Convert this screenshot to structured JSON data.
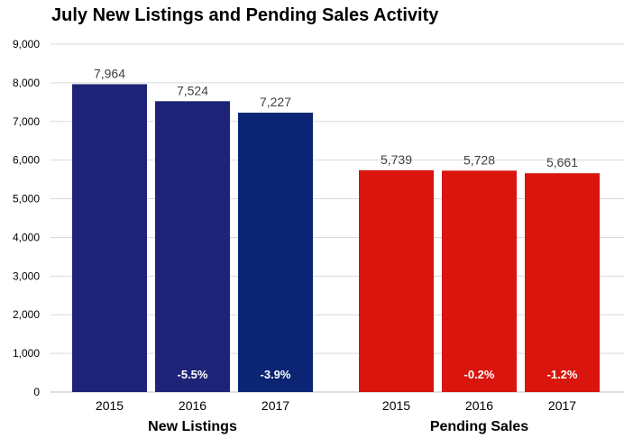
{
  "title": "July New Listings and Pending Sales Activity",
  "chart_data": {
    "type": "bar",
    "title": "July New Listings and Pending Sales Activity",
    "ylim": [
      0,
      9000
    ],
    "yticks": [
      "0",
      "1,000",
      "2,000",
      "3,000",
      "4,000",
      "5,000",
      "6,000",
      "7,000",
      "8,000",
      "9,000"
    ],
    "grid": true,
    "groups": [
      {
        "name": "New Listings",
        "categories": [
          "2015",
          "2016",
          "2017"
        ],
        "values": [
          7964,
          7524,
          7227
        ],
        "value_labels": [
          "7,964",
          "7,524",
          "7,227"
        ],
        "change_labels": [
          "",
          "-5.5%",
          "-3.9%"
        ],
        "colors": [
          "#1f2377",
          "#1f2377",
          "#0b2473"
        ]
      },
      {
        "name": "Pending Sales",
        "categories": [
          "2015",
          "2016",
          "2017"
        ],
        "values": [
          5739,
          5728,
          5661
        ],
        "value_labels": [
          "5,739",
          "5,728",
          "5,661"
        ],
        "change_labels": [
          "",
          "-0.2%",
          "-1.2%"
        ],
        "colors": [
          "#d9150d",
          "#d9150d",
          "#d9150d"
        ]
      }
    ]
  }
}
